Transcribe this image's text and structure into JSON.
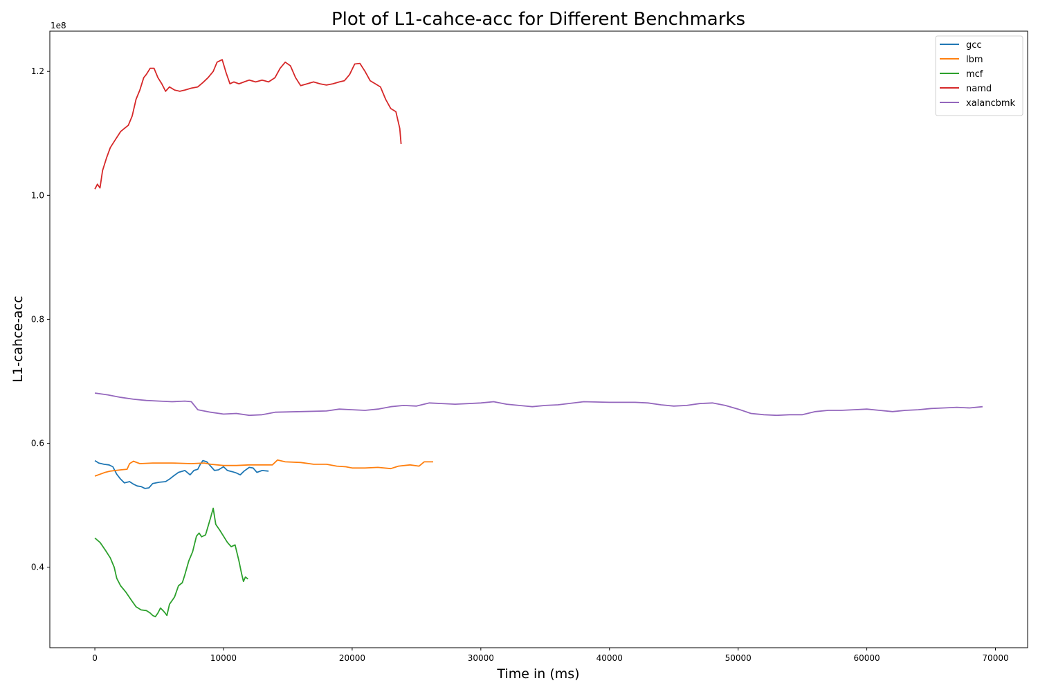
{
  "chart_data": {
    "type": "line",
    "title": "Plot of L1-cahce-acc for Different Benchmarks",
    "xlabel": "Time in (ms)",
    "ylabel": "L1-cahce-acc",
    "y_offset_label": "1e8",
    "xlim": [
      -3500,
      72500
    ],
    "ylim": [
      0.27,
      1.265
    ],
    "x_ticks": [
      0,
      10000,
      20000,
      30000,
      40000,
      50000,
      60000,
      70000
    ],
    "x_tick_labels": [
      "0",
      "10000",
      "20000",
      "30000",
      "40000",
      "50000",
      "60000",
      "70000"
    ],
    "y_ticks": [
      0.4,
      0.6,
      0.8,
      1.0,
      1.2
    ],
    "y_tick_labels": [
      "0.4",
      "0.6",
      "0.8",
      "1.0",
      "1.2"
    ],
    "grid": false,
    "legend_position": "top-right",
    "series": [
      {
        "name": "gcc",
        "color": "#1f77b4",
        "points": [
          [
            0,
            0.572
          ],
          [
            300,
            0.568
          ],
          [
            700,
            0.566
          ],
          [
            1100,
            0.565
          ],
          [
            1400,
            0.562
          ],
          [
            1700,
            0.55
          ],
          [
            2000,
            0.542
          ],
          [
            2300,
            0.536
          ],
          [
            2700,
            0.538
          ],
          [
            3000,
            0.534
          ],
          [
            3300,
            0.531
          ],
          [
            3600,
            0.53
          ],
          [
            3900,
            0.527
          ],
          [
            4200,
            0.528
          ],
          [
            4500,
            0.535
          ],
          [
            5000,
            0.537
          ],
          [
            5500,
            0.538
          ],
          [
            5800,
            0.542
          ],
          [
            6100,
            0.547
          ],
          [
            6500,
            0.553
          ],
          [
            7000,
            0.556
          ],
          [
            7400,
            0.549
          ],
          [
            7700,
            0.556
          ],
          [
            8000,
            0.558
          ],
          [
            8200,
            0.566
          ],
          [
            8400,
            0.572
          ],
          [
            8700,
            0.57
          ],
          [
            9000,
            0.563
          ],
          [
            9300,
            0.556
          ],
          [
            9600,
            0.557
          ],
          [
            10000,
            0.562
          ],
          [
            10300,
            0.556
          ],
          [
            10700,
            0.554
          ],
          [
            11000,
            0.552
          ],
          [
            11300,
            0.549
          ],
          [
            11600,
            0.555
          ],
          [
            12000,
            0.561
          ],
          [
            12300,
            0.56
          ],
          [
            12600,
            0.553
          ],
          [
            13000,
            0.556
          ],
          [
            13500,
            0.555
          ]
        ]
      },
      {
        "name": "lbm",
        "color": "#ff7f0e",
        "points": [
          [
            0,
            0.547
          ],
          [
            400,
            0.55
          ],
          [
            800,
            0.553
          ],
          [
            1200,
            0.555
          ],
          [
            1600,
            0.556
          ],
          [
            2000,
            0.557
          ],
          [
            2500,
            0.558
          ],
          [
            2700,
            0.567
          ],
          [
            3000,
            0.571
          ],
          [
            3500,
            0.567
          ],
          [
            4500,
            0.568
          ],
          [
            6000,
            0.568
          ],
          [
            7500,
            0.567
          ],
          [
            8500,
            0.568
          ],
          [
            9000,
            0.566
          ],
          [
            10000,
            0.564
          ],
          [
            11000,
            0.564
          ],
          [
            12000,
            0.565
          ],
          [
            13000,
            0.565
          ],
          [
            13800,
            0.565
          ],
          [
            14200,
            0.573
          ],
          [
            14800,
            0.57
          ],
          [
            16000,
            0.569
          ],
          [
            17000,
            0.566
          ],
          [
            18000,
            0.566
          ],
          [
            18800,
            0.563
          ],
          [
            19500,
            0.562
          ],
          [
            20000,
            0.56
          ],
          [
            21000,
            0.56
          ],
          [
            22000,
            0.561
          ],
          [
            23000,
            0.559
          ],
          [
            23600,
            0.563
          ],
          [
            24500,
            0.565
          ],
          [
            25200,
            0.563
          ],
          [
            25600,
            0.57
          ],
          [
            26300,
            0.57
          ]
        ]
      },
      {
        "name": "mcf",
        "color": "#2ca02c",
        "points": [
          [
            0,
            0.447
          ],
          [
            400,
            0.44
          ],
          [
            800,
            0.428
          ],
          [
            1200,
            0.415
          ],
          [
            1500,
            0.4
          ],
          [
            1700,
            0.382
          ],
          [
            2000,
            0.37
          ],
          [
            2400,
            0.36
          ],
          [
            2800,
            0.348
          ],
          [
            3200,
            0.336
          ],
          [
            3600,
            0.331
          ],
          [
            4000,
            0.33
          ],
          [
            4300,
            0.326
          ],
          [
            4500,
            0.322
          ],
          [
            4700,
            0.32
          ],
          [
            4900,
            0.326
          ],
          [
            5100,
            0.334
          ],
          [
            5300,
            0.33
          ],
          [
            5500,
            0.325
          ],
          [
            5600,
            0.322
          ],
          [
            5800,
            0.34
          ],
          [
            6200,
            0.352
          ],
          [
            6500,
            0.37
          ],
          [
            6800,
            0.375
          ],
          [
            7000,
            0.388
          ],
          [
            7300,
            0.41
          ],
          [
            7600,
            0.425
          ],
          [
            7900,
            0.45
          ],
          [
            8100,
            0.455
          ],
          [
            8300,
            0.449
          ],
          [
            8600,
            0.452
          ],
          [
            8800,
            0.466
          ],
          [
            9000,
            0.48
          ],
          [
            9200,
            0.495
          ],
          [
            9400,
            0.469
          ],
          [
            9700,
            0.46
          ],
          [
            10000,
            0.45
          ],
          [
            10300,
            0.44
          ],
          [
            10600,
            0.433
          ],
          [
            10900,
            0.436
          ],
          [
            11200,
            0.41
          ],
          [
            11400,
            0.39
          ],
          [
            11550,
            0.377
          ],
          [
            11700,
            0.384
          ],
          [
            11900,
            0.381
          ]
        ]
      },
      {
        "name": "namd",
        "color": "#d62728",
        "points": [
          [
            0,
            1.01
          ],
          [
            200,
            1.018
          ],
          [
            400,
            1.012
          ],
          [
            600,
            1.04
          ],
          [
            900,
            1.06
          ],
          [
            1200,
            1.077
          ],
          [
            1600,
            1.09
          ],
          [
            2000,
            1.103
          ],
          [
            2300,
            1.108
          ],
          [
            2600,
            1.113
          ],
          [
            2900,
            1.128
          ],
          [
            3200,
            1.155
          ],
          [
            3500,
            1.17
          ],
          [
            3800,
            1.19
          ],
          [
            4000,
            1.195
          ],
          [
            4300,
            1.205
          ],
          [
            4600,
            1.205
          ],
          [
            4900,
            1.19
          ],
          [
            5200,
            1.18
          ],
          [
            5500,
            1.168
          ],
          [
            5800,
            1.175
          ],
          [
            6200,
            1.17
          ],
          [
            6600,
            1.168
          ],
          [
            7000,
            1.17
          ],
          [
            7500,
            1.173
          ],
          [
            8000,
            1.175
          ],
          [
            8400,
            1.182
          ],
          [
            8800,
            1.19
          ],
          [
            9200,
            1.2
          ],
          [
            9500,
            1.215
          ],
          [
            9900,
            1.219
          ],
          [
            10200,
            1.198
          ],
          [
            10500,
            1.18
          ],
          [
            10800,
            1.183
          ],
          [
            11200,
            1.18
          ],
          [
            11600,
            1.183
          ],
          [
            12000,
            1.186
          ],
          [
            12500,
            1.183
          ],
          [
            13000,
            1.186
          ],
          [
            13500,
            1.183
          ],
          [
            14000,
            1.19
          ],
          [
            14400,
            1.205
          ],
          [
            14800,
            1.215
          ],
          [
            15200,
            1.209
          ],
          [
            15600,
            1.19
          ],
          [
            16000,
            1.177
          ],
          [
            16500,
            1.18
          ],
          [
            17000,
            1.183
          ],
          [
            17500,
            1.18
          ],
          [
            18000,
            1.178
          ],
          [
            18500,
            1.18
          ],
          [
            19000,
            1.183
          ],
          [
            19400,
            1.185
          ],
          [
            19800,
            1.195
          ],
          [
            20200,
            1.212
          ],
          [
            20600,
            1.213
          ],
          [
            21000,
            1.2
          ],
          [
            21400,
            1.185
          ],
          [
            21800,
            1.18
          ],
          [
            22200,
            1.175
          ],
          [
            22600,
            1.155
          ],
          [
            23000,
            1.14
          ],
          [
            23400,
            1.135
          ],
          [
            23700,
            1.108
          ],
          [
            23800,
            1.083
          ]
        ]
      },
      {
        "name": "xalancbmk",
        "color": "#9467bd",
        "points": [
          [
            0,
            0.681
          ],
          [
            1000,
            0.678
          ],
          [
            2000,
            0.674
          ],
          [
            3000,
            0.671
          ],
          [
            4000,
            0.669
          ],
          [
            5000,
            0.668
          ],
          [
            6000,
            0.667
          ],
          [
            7000,
            0.668
          ],
          [
            7500,
            0.667
          ],
          [
            8000,
            0.654
          ],
          [
            9000,
            0.65
          ],
          [
            10000,
            0.647
          ],
          [
            11000,
            0.648
          ],
          [
            12000,
            0.645
          ],
          [
            13000,
            0.646
          ],
          [
            14000,
            0.65
          ],
          [
            16000,
            0.651
          ],
          [
            18000,
            0.652
          ],
          [
            19000,
            0.655
          ],
          [
            20000,
            0.654
          ],
          [
            21000,
            0.653
          ],
          [
            22000,
            0.655
          ],
          [
            23000,
            0.659
          ],
          [
            24000,
            0.661
          ],
          [
            25000,
            0.66
          ],
          [
            26000,
            0.665
          ],
          [
            28000,
            0.663
          ],
          [
            30000,
            0.665
          ],
          [
            31000,
            0.667
          ],
          [
            32000,
            0.663
          ],
          [
            34000,
            0.659
          ],
          [
            35000,
            0.661
          ],
          [
            36000,
            0.662
          ],
          [
            38000,
            0.667
          ],
          [
            40000,
            0.666
          ],
          [
            42000,
            0.666
          ],
          [
            43000,
            0.665
          ],
          [
            44000,
            0.662
          ],
          [
            45000,
            0.66
          ],
          [
            46000,
            0.661
          ],
          [
            47000,
            0.664
          ],
          [
            48000,
            0.665
          ],
          [
            49000,
            0.661
          ],
          [
            50000,
            0.655
          ],
          [
            51000,
            0.648
          ],
          [
            52000,
            0.646
          ],
          [
            53000,
            0.645
          ],
          [
            54000,
            0.646
          ],
          [
            55000,
            0.646
          ],
          [
            56000,
            0.651
          ],
          [
            57000,
            0.653
          ],
          [
            58000,
            0.653
          ],
          [
            59000,
            0.654
          ],
          [
            60000,
            0.655
          ],
          [
            61000,
            0.653
          ],
          [
            62000,
            0.651
          ],
          [
            63000,
            0.653
          ],
          [
            64000,
            0.654
          ],
          [
            65000,
            0.656
          ],
          [
            66000,
            0.657
          ],
          [
            67000,
            0.658
          ],
          [
            68000,
            0.657
          ],
          [
            69000,
            0.659
          ]
        ]
      }
    ]
  }
}
